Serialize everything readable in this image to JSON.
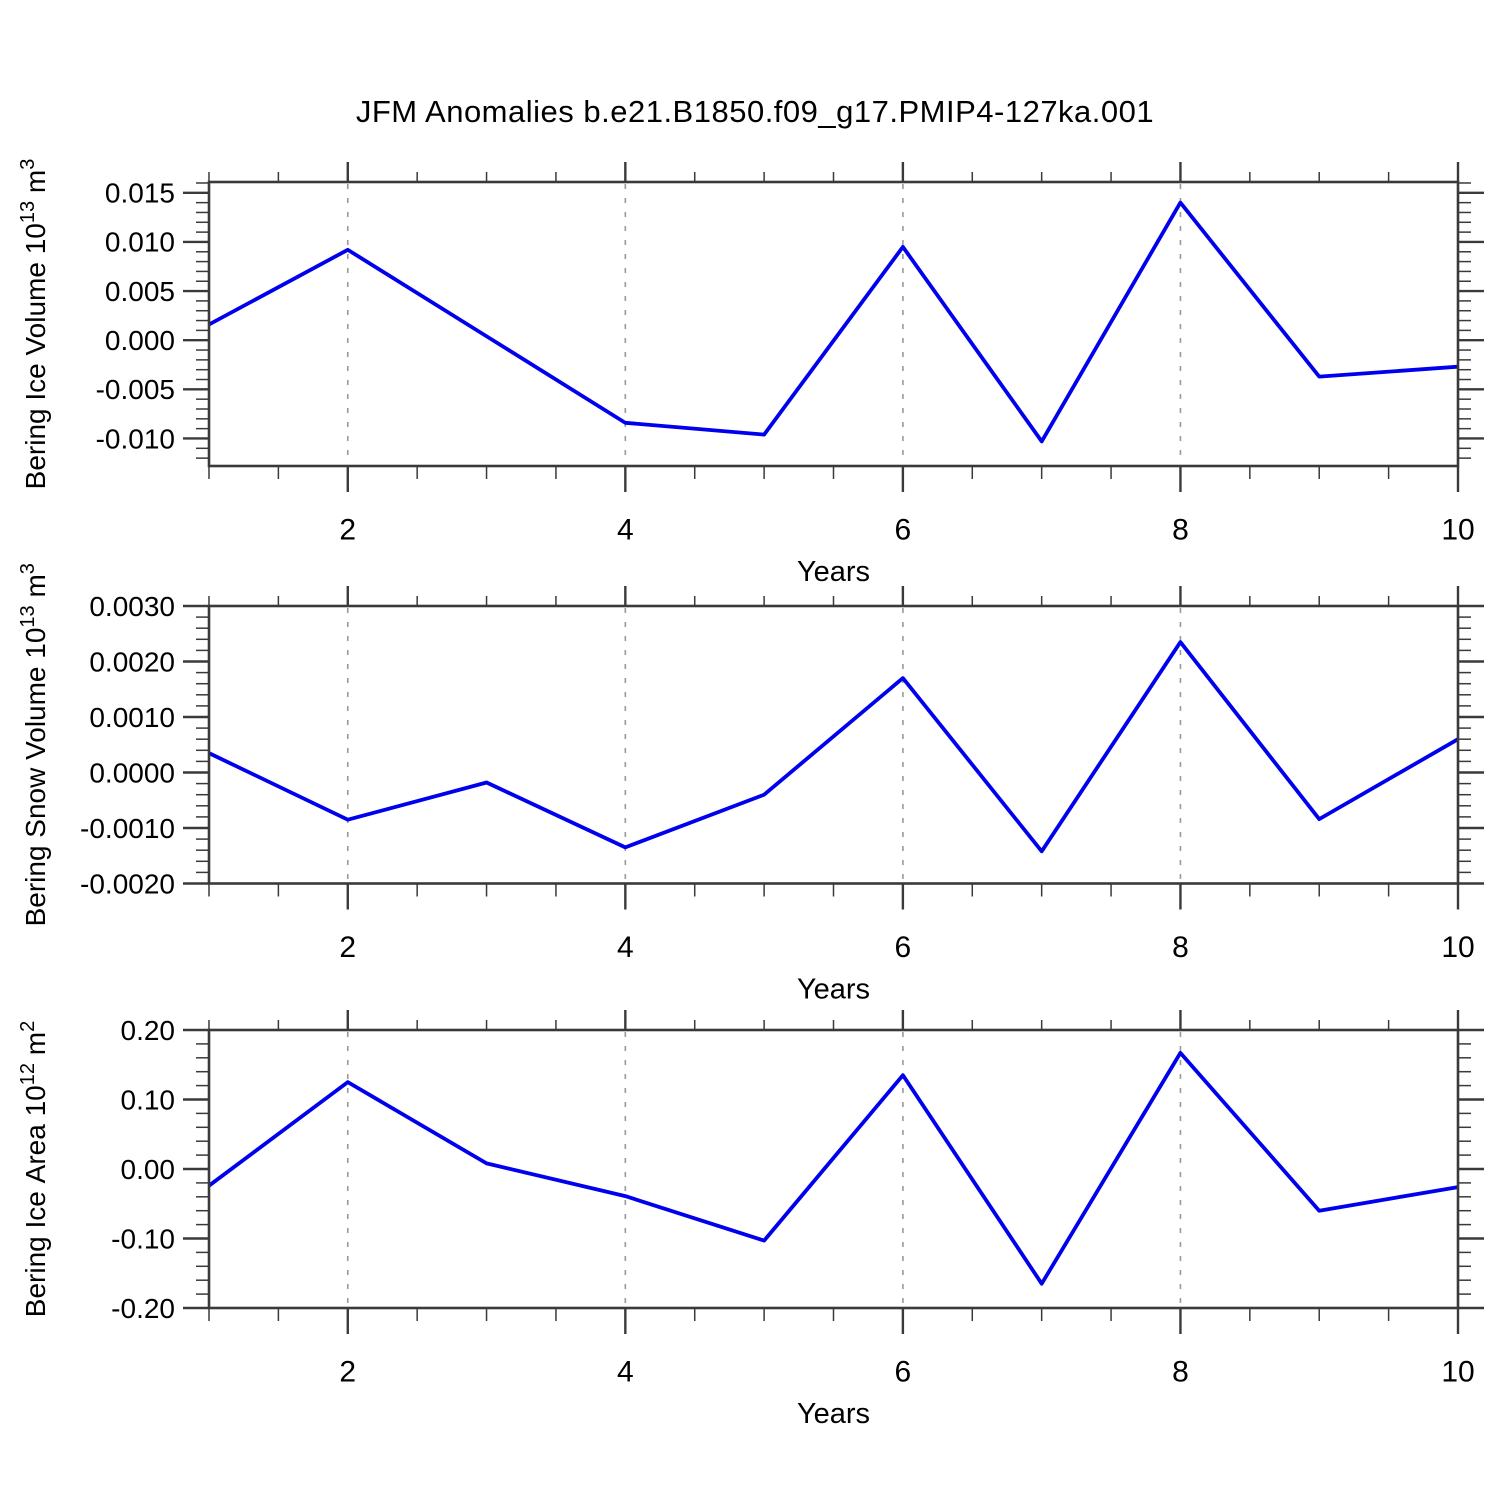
{
  "title": "JFM Anomalies b.e21.B1850.f09_g17.PMIP4-127ka.001",
  "colors": {
    "line_blue": "#0000ee",
    "axis": "#3a3a3a",
    "grid": "#999999",
    "text": "#000000",
    "background": "#ffffff"
  },
  "chart_data": [
    {
      "type": "line",
      "name": "bering-ice-volume",
      "ylabel_parts": [
        {
          "t": "Bering Ice Volume 10",
          "sup": false
        },
        {
          "t": "13",
          "sup": true
        },
        {
          "t": " m",
          "sup": false
        },
        {
          "t": "3",
          "sup": true
        }
      ],
      "xlabel": "Years",
      "x": [
        1,
        2,
        3,
        4,
        5,
        6,
        7,
        8,
        9,
        10
      ],
      "values": [
        0.0016,
        0.0092,
        0.0004,
        -0.0084,
        -0.0096,
        0.0095,
        -0.0103,
        0.014,
        -0.0037,
        -0.0027
      ],
      "xlim": [
        1,
        10
      ],
      "ylim": [
        -0.0128,
        0.0161
      ],
      "x_major": [
        2,
        4,
        6,
        8,
        10
      ],
      "x_major_labels": [
        "2",
        "4",
        "6",
        "8",
        "10"
      ],
      "x_minor_step": 0.5,
      "grid_x": [
        2,
        4,
        6,
        8
      ],
      "y_major": [
        0.015,
        0.01,
        0.005,
        0.0,
        -0.005,
        -0.01
      ],
      "y_major_labels": [
        "0.015",
        "0.010",
        "0.005",
        "0.000",
        "-0.005",
        "-0.010"
      ],
      "y_minor_step": 0.001,
      "grid": "x-dashed-only",
      "legend": "none"
    },
    {
      "type": "line",
      "name": "bering-snow-volume",
      "ylabel_parts": [
        {
          "t": "Bering Snow Volume 10",
          "sup": false
        },
        {
          "t": "13",
          "sup": true
        },
        {
          "t": " m",
          "sup": false
        },
        {
          "t": "3",
          "sup": true
        }
      ],
      "xlabel": "Years",
      "x": [
        1,
        2,
        3,
        4,
        5,
        6,
        7,
        8,
        9,
        10
      ],
      "values": [
        0.00035,
        -0.00085,
        -0.00018,
        -0.00135,
        -0.0004,
        0.0017,
        -0.00142,
        0.00235,
        -0.00084,
        0.0006
      ],
      "xlim": [
        1,
        10
      ],
      "ylim": [
        -0.002,
        0.003
      ],
      "x_major": [
        2,
        4,
        6,
        8,
        10
      ],
      "x_major_labels": [
        "2",
        "4",
        "6",
        "8",
        "10"
      ],
      "x_minor_step": 0.5,
      "grid_x": [
        2,
        4,
        6,
        8
      ],
      "y_major": [
        0.003,
        0.002,
        0.001,
        0.0,
        -0.001,
        -0.002
      ],
      "y_major_labels": [
        "0.0030",
        "0.0020",
        "0.0010",
        "0.0000",
        "-0.0010",
        "-0.0020"
      ],
      "y_minor_step": 0.0002,
      "grid": "x-dashed-only",
      "legend": "none"
    },
    {
      "type": "line",
      "name": "bering-ice-area",
      "ylabel_parts": [
        {
          "t": "Bering Ice Area 10",
          "sup": false
        },
        {
          "t": "12",
          "sup": true
        },
        {
          "t": " m",
          "sup": false
        },
        {
          "t": "2",
          "sup": true
        }
      ],
      "xlabel": "Years",
      "x": [
        1,
        2,
        3,
        4,
        5,
        6,
        7,
        8,
        9,
        10
      ],
      "values": [
        -0.024,
        0.125,
        0.008,
        -0.039,
        -0.103,
        0.135,
        -0.165,
        0.167,
        -0.06,
        -0.026
      ],
      "xlim": [
        1,
        10
      ],
      "ylim": [
        -0.2,
        0.2
      ],
      "x_major": [
        2,
        4,
        6,
        8,
        10
      ],
      "x_major_labels": [
        "2",
        "4",
        "6",
        "8",
        "10"
      ],
      "x_minor_step": 0.5,
      "grid_x": [
        2,
        4,
        6,
        8
      ],
      "y_major": [
        0.2,
        0.1,
        0.0,
        -0.1,
        -0.2
      ],
      "y_major_labels": [
        "0.20",
        "0.10",
        "0.00",
        "-0.10",
        "-0.20"
      ],
      "y_minor_step": 0.02,
      "grid": "x-dashed-only",
      "legend": "none"
    }
  ]
}
